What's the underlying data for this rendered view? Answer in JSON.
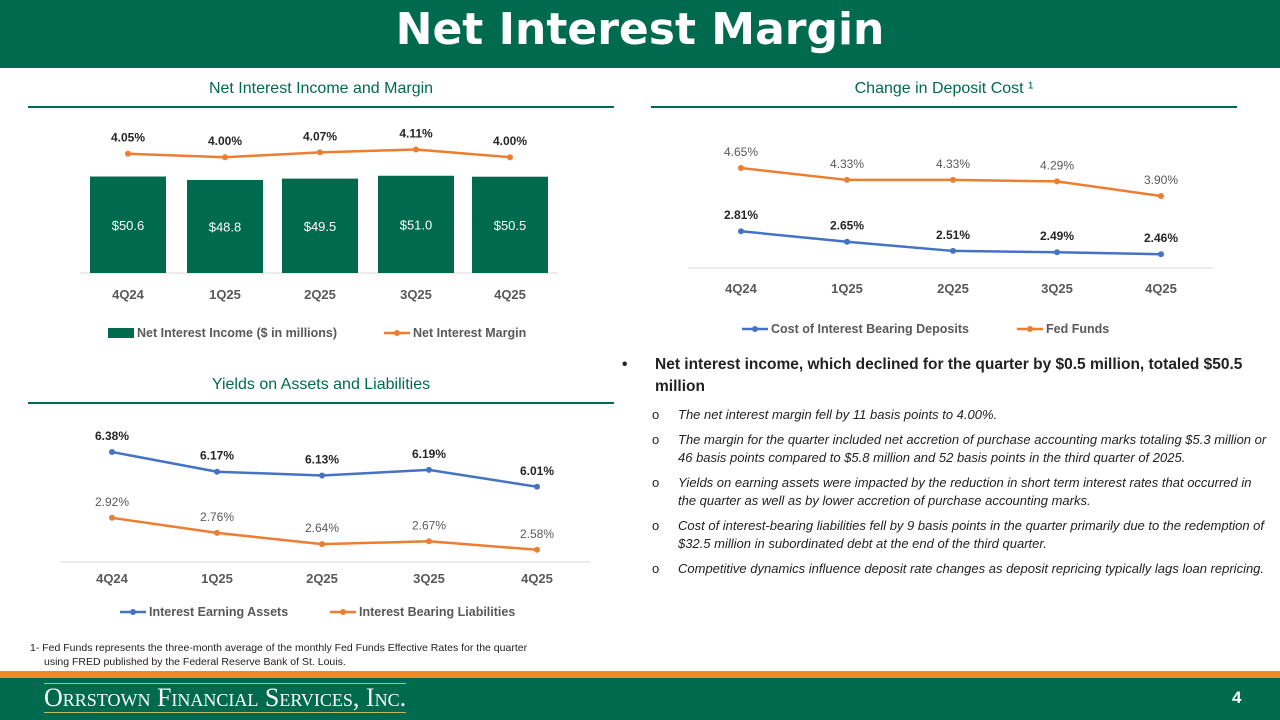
{
  "title": "Net Interest Margin",
  "sections": {
    "nii": "Net Interest Income and Margin",
    "deposit": "Change in Deposit Cost ¹",
    "yields": "Yields on Assets and Liabilities"
  },
  "colors": {
    "green": "#006A4E",
    "orange": "#ED7D31",
    "blue": "#4472C4",
    "accent_bar": "#EE8B22"
  },
  "chart_data": [
    {
      "type": "bar+line",
      "categories": [
        "4Q24",
        "1Q25",
        "2Q25",
        "3Q25",
        "4Q25"
      ],
      "series": [
        {
          "name": "Net Interest Income ($ in millions)",
          "kind": "bar",
          "color": "#006A4E",
          "values": [
            50.6,
            48.8,
            49.5,
            51.0,
            50.5
          ],
          "labels": [
            "$50.6",
            "$48.8",
            "$49.5",
            "$51.0",
            "$50.5"
          ],
          "ylim": [
            0,
            75
          ]
        },
        {
          "name": "Net Interest Margin",
          "kind": "line",
          "color": "#ED7D31",
          "values": [
            4.05,
            4.0,
            4.07,
            4.11,
            4.0
          ],
          "labels": [
            "4.05%",
            "4.00%",
            "4.07%",
            "4.11%",
            "4.00%"
          ],
          "ylim": [
            2.34,
            4.39
          ]
        }
      ],
      "legend": "bottom",
      "grid": false
    },
    {
      "type": "line",
      "categories": [
        "4Q24",
        "1Q25",
        "2Q25",
        "3Q25",
        "4Q25"
      ],
      "series": [
        {
          "name": "Cost of Interest Bearing Deposits",
          "color": "#4472C4",
          "values": [
            2.81,
            2.65,
            2.51,
            2.49,
            2.46
          ],
          "labels": [
            "2.81%",
            "2.65%",
            "2.51%",
            "2.49%",
            "2.46%"
          ],
          "ylim": [
            2.25,
            4.2
          ],
          "bold": true
        },
        {
          "name": "Fed Funds",
          "color": "#ED7D31",
          "values": [
            4.65,
            4.33,
            4.33,
            4.29,
            3.9
          ],
          "labels": [
            "4.65%",
            "4.33%",
            "4.33%",
            "4.29%",
            "3.90%"
          ],
          "ylim": [
            1.97,
            5.4
          ],
          "bold": false
        }
      ],
      "legend": "bottom",
      "grid": false
    },
    {
      "type": "line",
      "categories": [
        "4Q24",
        "1Q25",
        "2Q25",
        "3Q25",
        "4Q25"
      ],
      "series": [
        {
          "name": "Interest Earning Assets",
          "color": "#4472C4",
          "values": [
            6.38,
            6.17,
            6.13,
            6.19,
            6.01
          ],
          "labels": [
            "6.38%",
            "6.17%",
            "6.13%",
            "6.19%",
            "6.01%"
          ],
          "ylim": [
            5.21,
            6.72
          ],
          "bold": true
        },
        {
          "name": "Interest Bearing Liabilities",
          "color": "#ED7D31",
          "values": [
            2.92,
            2.76,
            2.64,
            2.67,
            2.58
          ],
          "labels": [
            "2.92%",
            "2.76%",
            "2.64%",
            "2.67%",
            "2.58%"
          ],
          "ylim": [
            2.45,
            3.96
          ],
          "bold": false
        }
      ],
      "legend": "bottom",
      "grid": false
    }
  ],
  "bullets": {
    "main": "Net interest income, which declined for the quarter by $0.5 million, totaled $50.5 million",
    "subs": [
      "The net interest margin fell by 11 basis points to 4.00%.",
      "The margin for the quarter included net accretion of purchase accounting marks totaling $5.3 million or 46 basis points compared to $5.8 million and 52 basis points in the third quarter of 2025.",
      "Yields on earning assets were impacted by the reduction in short term interest rates that occurred in the quarter as well as by lower accretion of purchase accounting marks.",
      "Cost of interest-bearing liabilities fell by 9 basis points in the quarter primarily due to the redemption of $32.5 million in subordinated debt at the end of the third quarter.",
      "Competitive dynamics influence deposit rate changes as deposit repricing typically lags loan repricing."
    ]
  },
  "footnote": [
    "1- Fed Funds represents the three-month average of the monthly Fed Funds Effective Rates for the quarter",
    "using FRED published by the Federal Reserve Bank of St. Louis."
  ],
  "footer": {
    "logo": "Orrstown Financial Services, Inc.",
    "page": "4"
  }
}
